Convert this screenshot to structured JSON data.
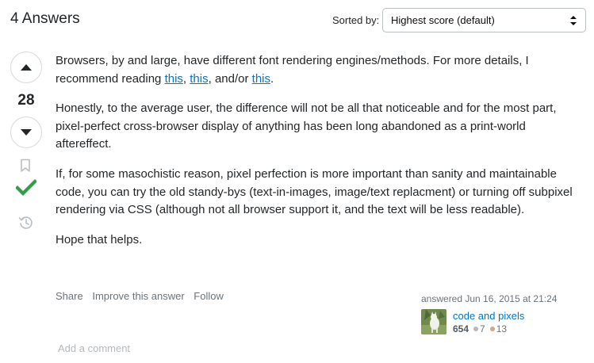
{
  "header": {
    "title": "4 Answers",
    "sorted_by_label": "Sorted by:",
    "sort_value": "Highest score (default)"
  },
  "votes": {
    "score": "28",
    "accepted_color": "#2f9e44"
  },
  "post": {
    "p1_text": "Browsers, by and large, have different font rendering engines/methods. For more details, I recommend reading ",
    "link1": "this",
    "sep1": ", ",
    "link2": "this",
    "sep2": ", and/or ",
    "link3": "this",
    "end1": ".",
    "p2": "Honestly, to the average user, the difference will not be all that noticeable and for the most part, pixel-perfect cross-browser display of anything has been long abandoned as a print-world aftereffect.",
    "p3": "If, for some masochistic reason, pixel perfection is more important than sanity and maintainable code, you can try the old standy-bys (text-in-images, image/text replacment) or turning off subpixel rendering via CSS (although not all browser support it, and the text will be less readable).",
    "p4": "Hope that helps."
  },
  "post_menu": {
    "share": "Share",
    "improve": "Improve this answer",
    "follow": "Follow"
  },
  "user": {
    "action_time": "answered Jun 16, 2015 at 21:24",
    "name": "code and pixels",
    "reputation": "654",
    "silver_badges": "7",
    "bronze_badges": "13"
  },
  "comments": {
    "add_comment": "Add a comment"
  },
  "colors": {
    "link": "#0074cc",
    "muted": "#6a737c",
    "accent_green": "#2f9e44"
  }
}
